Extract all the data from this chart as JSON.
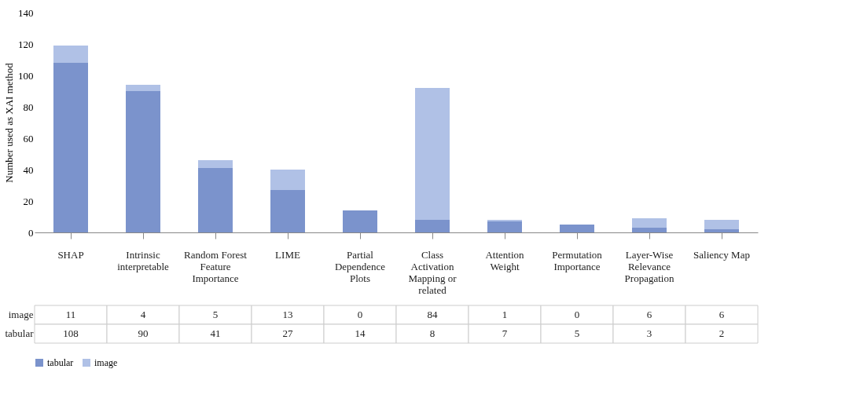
{
  "chart_data": {
    "type": "bar",
    "stacked": true,
    "ylabel": "Number used as XAI method",
    "categories": [
      "SHAP",
      "Intrinsic interpretable",
      "Random Forest Feature Importance",
      "LIME",
      "Partial Dependence Plots",
      "Class Activation Mapping or related",
      "Attention Weight",
      "Permutation Importance",
      "Layer-Wise Relevance Propagation",
      "Saliency Map"
    ],
    "series": [
      {
        "name": "tabular",
        "color": "#7b93cc",
        "values": [
          108,
          90,
          41,
          27,
          14,
          8,
          7,
          5,
          3,
          2
        ]
      },
      {
        "name": "image",
        "color": "#b0c1e6",
        "values": [
          11,
          4,
          5,
          13,
          0,
          84,
          1,
          0,
          6,
          6
        ]
      }
    ],
    "ylim": [
      0,
      140
    ],
    "yticks": [
      0,
      20,
      40,
      60,
      80,
      100,
      120,
      140
    ],
    "grid": false,
    "legend": "bottom",
    "data_labels": true
  }
}
